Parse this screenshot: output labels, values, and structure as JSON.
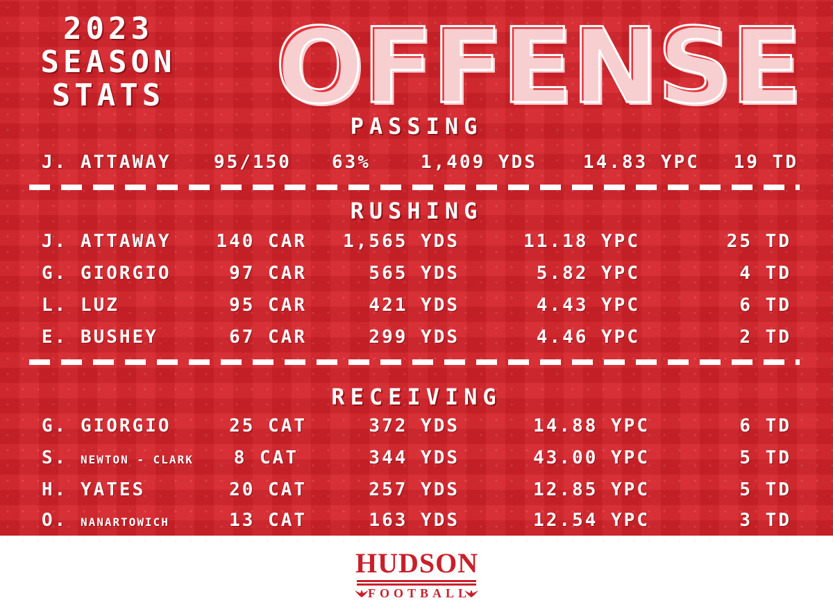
{
  "header": {
    "season_lines": [
      "2023",
      "SEASON",
      "STATS"
    ],
    "title": "OFFENSE"
  },
  "passing": {
    "heading": "PASSING",
    "rows": [
      {
        "name": "J. ATTAWAY",
        "att": "95/150",
        "pct": "63%",
        "yds": "1,409 YDS",
        "ypc": "14.83 YPC",
        "td": "19 TD"
      }
    ]
  },
  "rushing": {
    "heading": "RUSHING",
    "rows": [
      {
        "name": "J. ATTAWAY",
        "car": "140 CAR",
        "yds": "1,565 YDS",
        "ypc": "11.18 YPC",
        "td": "25 TD"
      },
      {
        "name": "G. GIORGIO",
        "car": "97 CAR",
        "yds": "565 YDS",
        "ypc": "5.82 YPC",
        "td": "4 TD"
      },
      {
        "name": "L. LUZ",
        "car": "95 CAR",
        "yds": "421 YDS",
        "ypc": "4.43 YPC",
        "td": "6 TD"
      },
      {
        "name": "E. BUSHEY",
        "car": "67 CAR",
        "yds": "299 YDS",
        "ypc": "4.46 YPC",
        "td": "2 TD"
      }
    ]
  },
  "receiving": {
    "heading": "RECEIVING",
    "rows": [
      {
        "initial": "G.",
        "surname": "GIORGIO",
        "cat": "25 CAT",
        "yds": "372 YDS",
        "ypc": "14.88 YPC",
        "td": "6 TD"
      },
      {
        "initial": "S.",
        "surname": "NEWTON - CLARK",
        "cat": "8 CAT",
        "yds": "344 YDS",
        "ypc": "43.00 YPC",
        "td": "5 TD"
      },
      {
        "initial": "H.",
        "surname": "YATES",
        "cat": "20 CAT",
        "yds": "257 YDS",
        "ypc": "12.85 YPC",
        "td": "5 TD"
      },
      {
        "initial": "O.",
        "surname": "NANARTOWICH",
        "cat": "13 CAT",
        "yds": "163 YDS",
        "ypc": "12.54 YPC",
        "td": "3 TD"
      }
    ]
  },
  "logo": {
    "wordmark": "HUDSON",
    "subtitle": "FOOTBALL",
    "icon": "hawk-icon",
    "color": "#c8202b"
  },
  "colors": {
    "background": "#d5222a",
    "text": "#ffffff"
  }
}
